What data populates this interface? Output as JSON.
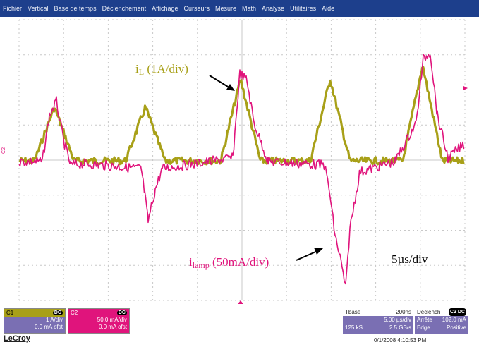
{
  "menu": [
    "Fichier",
    "Vertical",
    "Base de temps",
    "Déclenchement",
    "Affichage",
    "Curseurs",
    "Mesure",
    "Math",
    "Analyse",
    "Utilitaires",
    "Aide"
  ],
  "annotations": {
    "il_main": "i",
    "il_sub": "L",
    "il_rest": " (1A/div)",
    "ilamp_main": "i",
    "ilamp_sub": "lamp",
    "ilamp_rest": " (50mA/div)",
    "timescale": "5µs/div"
  },
  "markers": {
    "c2_label": "C2"
  },
  "channel1": {
    "name": "C1",
    "coupling": "DC",
    "scale": "1 A/div",
    "offset": "0.0 mA ofst",
    "color": "#a8a018"
  },
  "channel2": {
    "name": "C2",
    "coupling": "DC",
    "scale": "50.0 mA/div",
    "offset": "0.0 mA ofst",
    "color": "#e0147c"
  },
  "timebase": {
    "title": "Tbase",
    "delay": "200ns",
    "scale": "5.00 µs/div",
    "samples": "125 kS",
    "rate": "2.5 GS/s"
  },
  "trigger": {
    "title": "Déclench",
    "badge": "C2 DC",
    "mode": "Arrête",
    "level": "102.0 mA",
    "type": "Edge",
    "slope": "Positive"
  },
  "footer": {
    "brand": "LeCroy",
    "timestamp": "0/1/2008 4:10:53 PM"
  },
  "colors": {
    "menubar": "#1d3f8c",
    "grid": "#c8c8c8",
    "il_trace": "#a8a018",
    "ilamp_trace": "#e0147c",
    "marker": "#e0147c"
  }
}
